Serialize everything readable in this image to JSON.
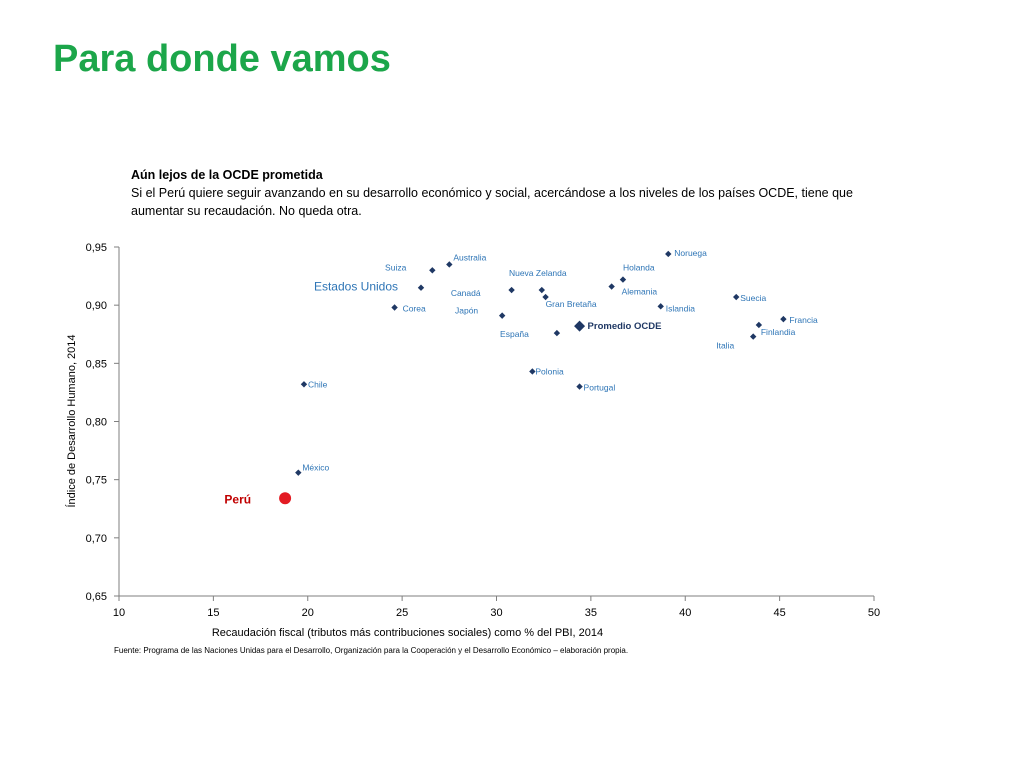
{
  "page": {
    "title": "Para donde vamos",
    "subtitle_bold": "Aún lejos de la OCDE prometida",
    "subtitle_text": "Si el Perú quiere seguir avanzando en su desarrollo económico y social, acercándose a los niveles de los países OCDE, tiene que aumentar su recaudación. No queda otra.",
    "source": "Fuente: Programa de las Naciones Unidas para el Desarrollo, Organización para la Cooperación y el Desarrollo Económico – elaboración propia."
  },
  "chart_data": {
    "type": "scatter",
    "xlabel": "Recaudación fiscal (tributos más contribuciones sociales) como % del PBI, 2014",
    "ylabel": "Índice de Desarrollo Humano, 2014",
    "xlim": [
      10,
      50
    ],
    "ylim": [
      0.65,
      0.95
    ],
    "xticks": [
      "10",
      "15",
      "20",
      "25",
      "30",
      "35",
      "40",
      "45",
      "50"
    ],
    "yticks": [
      "0,65",
      "0,70",
      "0,75",
      "0,80",
      "0,85",
      "0,90",
      "0,95"
    ],
    "grid": false,
    "colors": {
      "marker": "#1f3864",
      "label": "#2e75b6",
      "peru": "#e31b23",
      "peru_label": "#c00000",
      "axis": "#7f7f7f"
    },
    "points": [
      {
        "name": "Noruega",
        "x": 39.1,
        "y": 0.944
      },
      {
        "name": "Australia",
        "x": 27.5,
        "y": 0.935
      },
      {
        "name": "Suiza",
        "x": 26.6,
        "y": 0.93
      },
      {
        "name": "Holanda",
        "x": 36.7,
        "y": 0.922
      },
      {
        "name": "Estados Unidos",
        "x": 26.0,
        "y": 0.915
      },
      {
        "name": "Alemania",
        "x": 36.1,
        "y": 0.916
      },
      {
        "name": "Nueva Zelanda",
        "x": 32.4,
        "y": 0.913
      },
      {
        "name": "Canadá",
        "x": 30.8,
        "y": 0.913
      },
      {
        "name": "Gran Bretaña",
        "x": 32.6,
        "y": 0.907
      },
      {
        "name": "Suecia",
        "x": 42.7,
        "y": 0.907
      },
      {
        "name": "Islandia",
        "x": 38.7,
        "y": 0.899
      },
      {
        "name": "Corea",
        "x": 24.6,
        "y": 0.898
      },
      {
        "name": "Japón",
        "x": 30.3,
        "y": 0.891
      },
      {
        "name": "Francia",
        "x": 45.2,
        "y": 0.888
      },
      {
        "name": "Finlandia",
        "x": 43.9,
        "y": 0.883
      },
      {
        "name": "Promedio OCDE",
        "x": 34.4,
        "y": 0.882
      },
      {
        "name": "España",
        "x": 33.2,
        "y": 0.876
      },
      {
        "name": "Italia",
        "x": 43.6,
        "y": 0.873
      },
      {
        "name": "Polonia",
        "x": 31.9,
        "y": 0.843
      },
      {
        "name": "Chile",
        "x": 19.8,
        "y": 0.832
      },
      {
        "name": "Portugal",
        "x": 34.4,
        "y": 0.83
      },
      {
        "name": "México",
        "x": 19.5,
        "y": 0.756
      },
      {
        "name": "Perú",
        "x": 18.8,
        "y": 0.734
      }
    ]
  }
}
